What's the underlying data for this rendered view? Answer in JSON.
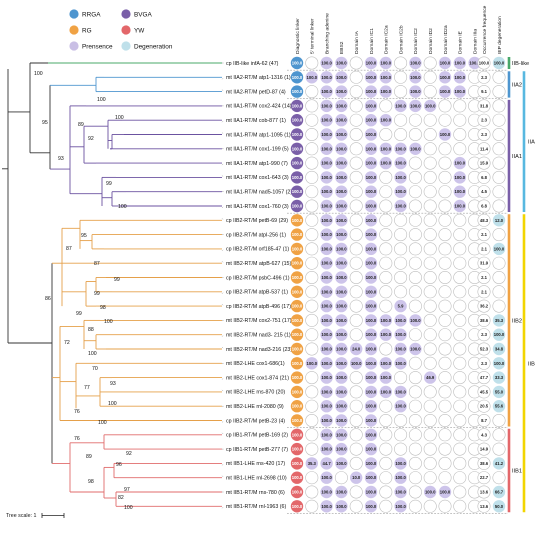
{
  "legend": [
    {
      "label": "RRGA",
      "color": "#4e95cf"
    },
    {
      "label": "BVGA",
      "color": "#7a5fa8"
    },
    {
      "label": "RG",
      "color": "#f0a244"
    },
    {
      "label": "YW",
      "color": "#e3676a"
    },
    {
      "label": "Prensence",
      "color": "#c9bfe5"
    },
    {
      "label": "Degeneration",
      "color": "#bfe0ea"
    }
  ],
  "columns": [
    "Diagnostic linker",
    "5' terminal linker",
    "Branching adenine",
    "EBS2",
    "Domain IA",
    "Domain IC1",
    "Domain IC2a",
    "Domain IC2b",
    "Domain IC2",
    "Domain ID2",
    "Domain ID2a",
    "Domain IE",
    "Domain IIIa",
    "Occurrence frequence",
    "IEP degeneration"
  ],
  "rows": [
    {
      "label": "cp IIB-like infA-62 (47)",
      "dot": "100.0",
      "dot_color": "#4e95cf",
      "c2": "100.0",
      "c3": "100.0",
      "c5": "100.0",
      "c6": "100.0",
      "c8": "100.0",
      "c10": "100.0",
      "c11": "100.0",
      "c12": "100.0",
      "occ": "100.0",
      "iep": "100.0"
    },
    {
      "label": "mt IIA2-RT/M atp1-1316 (1)",
      "dot": "100.0",
      "dot_color": "#4e95cf",
      "c1": "100.0",
      "c2": "100.0",
      "c3": "100.0",
      "c5": "100.0",
      "c6": "100.0",
      "c8": "100.0",
      "c10": "100.0",
      "c11": "100.0",
      "occ": "2.3"
    },
    {
      "label": "mt IIA2-RT/M petD-87 (4)",
      "dot": "100.0",
      "dot_color": "#4e95cf",
      "c2": "100.0",
      "c3": "100.0",
      "c5": "100.0",
      "c6": "100.0",
      "c8": "100.0",
      "c10": "100.0",
      "c11": "100.0",
      "occ": "9.1"
    },
    {
      "label": "mt IIA1-RT/M cox2-424 (14)",
      "dot": "100.0",
      "dot_color": "#7a5fa8",
      "c2": "100.0",
      "c3": "100.0",
      "c5": "100.0",
      "c7": "100.0",
      "c8": "100.0",
      "c9": "100.0",
      "occ": "31.8"
    },
    {
      "label": "mt IIA1-RT/M cob-877 (1)",
      "dot": "100.0",
      "dot_color": "#7a5fa8",
      "c2": "100.0",
      "c3": "100.0",
      "c5": "100.0",
      "c6": "100.0",
      "occ": "2.3"
    },
    {
      "label": "mt IIA1-RT/M atp1-1095 (1)",
      "dot": "100.0",
      "dot_color": "#7a5fa8",
      "c2": "100.0",
      "c3": "100.0",
      "c5": "100.0",
      "c10": "100.0",
      "occ": "2.3"
    },
    {
      "label": "mt IIA1-RT/M cox1-199 (5)",
      "dot": "100.0",
      "dot_color": "#7a5fa8",
      "c2": "100.0",
      "c3": "100.0",
      "c5": "100.0",
      "c6": "100.0",
      "c7": "100.0",
      "c8": "100.0",
      "occ": "11.4"
    },
    {
      "label": "mt IIA1-RT/M atp1-990 (7)",
      "dot": "100.0",
      "dot_color": "#7a5fa8",
      "c2": "100.0",
      "c3": "100.0",
      "c5": "100.0",
      "c6": "100.0",
      "c7": "100.0",
      "c11": "100.0",
      "occ": "15.9"
    },
    {
      "label": "mt IIA1-RT/M cox1-643 (3)",
      "dot": "100.0",
      "dot_color": "#7a5fa8",
      "c2": "100.0",
      "c3": "100.0",
      "c5": "100.0",
      "c7": "100.0",
      "c11": "100.0",
      "occ": "6.8"
    },
    {
      "label": "mt IIA1-RT/M nad5-1057 (2)",
      "dot": "100.0",
      "dot_color": "#7a5fa8",
      "c2": "100.0",
      "c3": "100.0",
      "c5": "100.0",
      "c7": "100.0",
      "c11": "100.0",
      "occ": "4.5"
    },
    {
      "label": "mt IIA1-RT/M cox1-760 (3)",
      "dot": "100.0",
      "dot_color": "#7a5fa8",
      "c2": "100.0",
      "c3": "100.0",
      "c5": "100.0",
      "c7": "100.0",
      "c11": "100.0",
      "occ": "6.8"
    },
    {
      "label": "cp IIB2-RT/M petB-69 (29)",
      "dot": "100.0",
      "dot_color": "#f0a244",
      "c2": "100.0",
      "c3": "100.0",
      "c5": "100.0",
      "occ": "48.3",
      "iep": "12.0"
    },
    {
      "label": "cp IIB2-RT/M atpI-256 (1)",
      "dot": "100.0",
      "dot_color": "#f0a244",
      "c2": "100.0",
      "c3": "100.0",
      "c5": "100.0",
      "occ": "2.1"
    },
    {
      "label": "cp IIB2-RT/M orf185-47 (1)",
      "dot": "100.0",
      "dot_color": "#f0a244",
      "c2": "100.0",
      "c3": "100.0",
      "c5": "100.0",
      "occ": "2.1",
      "iep": "100.0"
    },
    {
      "label": "mt IIB2-RT/M atpB-627 (15)",
      "dot": "100.0",
      "dot_color": "#f0a244",
      "c2": "100.0",
      "c3": "100.0",
      "c5": "100.0",
      "occ": "31.9"
    },
    {
      "label": "cp IIB2-RT/M psbC-496 (1)",
      "dot": "100.0",
      "dot_color": "#f0a244",
      "c2": "100.0",
      "c3": "100.0",
      "c5": "100.0",
      "occ": "2.1"
    },
    {
      "label": "cp IIB2-RT/M atpB-537 (1)",
      "dot": "100.0",
      "dot_color": "#f0a244",
      "c2": "100.0",
      "c3": "100.0",
      "c5": "100.0",
      "occ": "2.1"
    },
    {
      "label": "cp IIB2-RT/M atpB-496 (17)",
      "dot": "100.0",
      "dot_color": "#f0a244",
      "c2": "100.0",
      "c3": "100.0",
      "c5": "100.0",
      "c7": "5.9",
      "occ": "36.2"
    },
    {
      "label": "mt IIB2-RT/M cox2-751 (17)",
      "dot": "100.0",
      "dot_color": "#f0a244",
      "c2": "100.0",
      "c3": "100.0",
      "c5": "100.0",
      "c6": "100.0",
      "c7": "100.0",
      "c8": "100.0",
      "occ": "38.6",
      "iep": "35.3"
    },
    {
      "label": "mt IIB2-RT/M nad3- 215 (1)",
      "dot": "100.0",
      "dot_color": "#f0a244",
      "c2": "100.0",
      "c3": "100.0",
      "c5": "100.0",
      "c6": "100.0",
      "c7": "100.0",
      "occ": "2.3",
      "iep": "100.0"
    },
    {
      "label": "mt IIB2-RT/M nad3-216 (23)",
      "dot": "100.0",
      "dot_color": "#f0a244",
      "c2": "100.0",
      "c3": "100.0",
      "c4": "24.0",
      "c5": "100.0",
      "c7": "100.0",
      "c8": "100.0",
      "occ": "52.3",
      "iep": "34.8"
    },
    {
      "label": "mt IIB2-LHE cox1-686(1)",
      "dot": "100.0",
      "dot_color": "#f0a244",
      "c1": "100.0",
      "c2": "100.0",
      "c3": "100.0",
      "c4": "100.0",
      "c5": "100.0",
      "c6": "100.0",
      "c7": "100.0",
      "occ": "2.3",
      "iep": "100.0"
    },
    {
      "label": "mt IIB2-LHE cox1-874 (21)",
      "dot": "100.0",
      "dot_color": "#f0a244",
      "c2": "100.0",
      "c3": "100.0",
      "c5": "100.0",
      "c6": "100.0",
      "c9": "46.9",
      "occ": "47.7",
      "iep": "33.3"
    },
    {
      "label": "mt IIB2-LHE rns-870 (20)",
      "dot": "100.0",
      "dot_color": "#f0a244",
      "c2": "100.0",
      "c3": "100.0",
      "c5": "100.0",
      "c6": "100.0",
      "c7": "100.0",
      "occ": "45.5",
      "iep": "55.0"
    },
    {
      "label": "mt IIB2-LHE rnl-2080 (9)",
      "dot": "100.0",
      "dot_color": "#f0a244",
      "c2": "100.0",
      "c3": "100.0",
      "c5": "100.0",
      "c7": "100.0",
      "occ": "20.5",
      "iep": "55.6"
    },
    {
      "label": "cp IIB2-RT/M petB-23 (4)",
      "dot": "100.0",
      "dot_color": "#f0a244",
      "c2": "100.0",
      "c3": "100.0",
      "c5": "100.0",
      "occ": "8.7"
    },
    {
      "label": "cp IIB1-RT/M petB-169 (2)",
      "dot": "100.0",
      "dot_color": "#e3676a",
      "c2": "100.0",
      "c3": "100.0",
      "c5": "100.0",
      "occ": "4.3"
    },
    {
      "label": "cp IIB1-RT/M petB-277 (7)",
      "dot": "100.0",
      "dot_color": "#e3676a",
      "c2": "100.0",
      "c3": "100.0",
      "c5": "100.0",
      "occ": "14.9"
    },
    {
      "label": "mt IIB1-LHE rns-420 (17)",
      "dot": "100.0",
      "dot_color": "#e3676a",
      "c1": "35.3",
      "c2": "44.7",
      "c3": "100.0",
      "c5": "100.0",
      "c7": "100.0",
      "occ": "38.6",
      "iep": "41.2"
    },
    {
      "label": "mt IIB1-LHE rnl-2698 (10)",
      "dot": "100.0",
      "dot_color": "#e3676a",
      "c2": "100.0",
      "c4": "10.0",
      "c5": "100.0",
      "c7": "100.0",
      "occ": "22.7"
    },
    {
      "label": "mt IIB1-RT/M rns-780 (6)",
      "dot": "100.0",
      "dot_color": "#e3676a",
      "c2": "100.0",
      "c3": "100.0",
      "c5": "100.0",
      "c7": "100.0",
      "c9": "100.0",
      "c10": "100.0",
      "occ": "13.6",
      "iep": "66.7"
    },
    {
      "label": "mt IIB1-RT/M rnl-1963 (6)",
      "dot": "100.0",
      "dot_color": "#e3676a",
      "c2": "100.0",
      "c3": "100.0",
      "c5": "100.0",
      "c7": "100.0",
      "occ": "13.6",
      "iep": "50.0"
    }
  ],
  "bootstrap": [
    {
      "value": "100",
      "x": 34,
      "y": 75
    },
    {
      "value": "100",
      "x": 97,
      "y": 101
    },
    {
      "value": "95",
      "x": 42,
      "y": 124
    },
    {
      "value": "89",
      "x": 78,
      "y": 126
    },
    {
      "value": "100",
      "x": 115,
      "y": 119
    },
    {
      "value": "92",
      "x": 88,
      "y": 140
    },
    {
      "value": "93",
      "x": 58,
      "y": 160
    },
    {
      "value": "99",
      "x": 106,
      "y": 185
    },
    {
      "value": "100",
      "x": 118,
      "y": 208
    },
    {
      "value": "95",
      "x": 81,
      "y": 237
    },
    {
      "value": "87",
      "x": 66,
      "y": 250
    },
    {
      "value": "87",
      "x": 94,
      "y": 265
    },
    {
      "value": "99",
      "x": 114,
      "y": 281
    },
    {
      "value": "99",
      "x": 94,
      "y": 295
    },
    {
      "value": "86",
      "x": 45,
      "y": 300
    },
    {
      "value": "98",
      "x": 100,
      "y": 309
    },
    {
      "value": "100",
      "x": 104,
      "y": 323
    },
    {
      "value": "99",
      "x": 76,
      "y": 315
    },
    {
      "value": "72",
      "x": 64,
      "y": 344
    },
    {
      "value": "88",
      "x": 88,
      "y": 331
    },
    {
      "value": "100",
      "x": 88,
      "y": 355
    },
    {
      "value": "70",
      "x": 92,
      "y": 370
    },
    {
      "value": "77",
      "x": 84,
      "y": 389
    },
    {
      "value": "93",
      "x": 110,
      "y": 385
    },
    {
      "value": "100",
      "x": 108,
      "y": 405
    },
    {
      "value": "76",
      "x": 74,
      "y": 413
    },
    {
      "value": "76",
      "x": 74,
      "y": 440
    },
    {
      "value": "100",
      "x": 98,
      "y": 424
    },
    {
      "value": "89",
      "x": 86,
      "y": 458
    },
    {
      "value": "92",
      "x": 126,
      "y": 455
    },
    {
      "value": "96",
      "x": 116,
      "y": 466
    },
    {
      "value": "98",
      "x": 88,
      "y": 483
    },
    {
      "value": "97",
      "x": 124,
      "y": 491
    },
    {
      "value": "82",
      "x": 118,
      "y": 499
    },
    {
      "value": "100",
      "x": 124,
      "y": 509
    }
  ],
  "groups": [
    {
      "label": "IIB-like",
      "color": "#48a86a"
    },
    {
      "label": "IIA2",
      "color": "#4e95cf"
    },
    {
      "label": "IIA1",
      "color": "#7a5fa8"
    },
    {
      "label": "IIA",
      "color": "#58b8e0"
    },
    {
      "label": "IIB2",
      "color": "#f0a244"
    },
    {
      "label": "IIB1",
      "color": "#e3676a"
    },
    {
      "label": "IIB",
      "color": "#f2d500"
    }
  ],
  "scale": {
    "label": "Tree scale: 1"
  }
}
